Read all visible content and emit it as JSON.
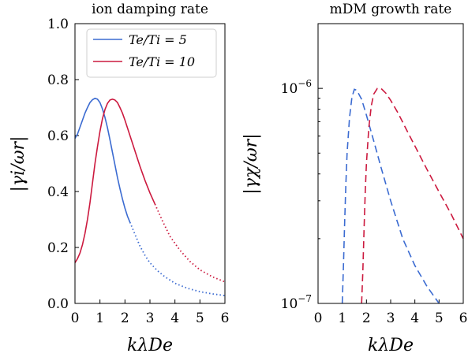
{
  "chart_data": [
    {
      "type": "line",
      "title": "ion damping rate",
      "xlabel": "kλDe",
      "ylabel": "|γi/ωr|",
      "xlim": [
        0,
        6
      ],
      "ylim": [
        0,
        1.0
      ],
      "xticks": [
        "0",
        "1",
        "2",
        "3",
        "4",
        "5",
        "6"
      ],
      "yticks": [
        "0.0",
        "0.2",
        "0.4",
        "0.6",
        "0.8",
        "1.0"
      ],
      "legend_position": "top-right",
      "series": [
        {
          "name": "Te/Ti = 5",
          "color": "#3b6bd1",
          "solid_until_x": 2.2,
          "after_style": "dotted",
          "points": [
            [
              0,
              0.59
            ],
            [
              0.1,
              0.605
            ],
            [
              0.2,
              0.63
            ],
            [
              0.3,
              0.655
            ],
            [
              0.4,
              0.68
            ],
            [
              0.5,
              0.7
            ],
            [
              0.6,
              0.718
            ],
            [
              0.7,
              0.728
            ],
            [
              0.8,
              0.733
            ],
            [
              0.9,
              0.73
            ],
            [
              1.0,
              0.718
            ],
            [
              1.1,
              0.695
            ],
            [
              1.2,
              0.665
            ],
            [
              1.3,
              0.628
            ],
            [
              1.4,
              0.585
            ],
            [
              1.5,
              0.54
            ],
            [
              1.6,
              0.495
            ],
            [
              1.7,
              0.45
            ],
            [
              1.8,
              0.41
            ],
            [
              1.9,
              0.373
            ],
            [
              2.0,
              0.34
            ],
            [
              2.1,
              0.312
            ],
            [
              2.2,
              0.29
            ],
            [
              2.4,
              0.247
            ],
            [
              2.6,
              0.205
            ],
            [
              2.8,
              0.172
            ],
            [
              3.0,
              0.145
            ],
            [
              3.3,
              0.117
            ],
            [
              3.6,
              0.095
            ],
            [
              4.0,
              0.072
            ],
            [
              4.5,
              0.054
            ],
            [
              5.0,
              0.042
            ],
            [
              5.5,
              0.034
            ],
            [
              6.0,
              0.028
            ]
          ]
        },
        {
          "name": "Te/Ti = 10",
          "color": "#cc1a3f",
          "solid_until_x": 3.2,
          "after_style": "dotted",
          "points": [
            [
              0,
              0.145
            ],
            [
              0.1,
              0.16
            ],
            [
              0.2,
              0.18
            ],
            [
              0.3,
              0.21
            ],
            [
              0.4,
              0.25
            ],
            [
              0.5,
              0.3
            ],
            [
              0.6,
              0.36
            ],
            [
              0.7,
              0.43
            ],
            [
              0.8,
              0.5
            ],
            [
              0.9,
              0.56
            ],
            [
              1.0,
              0.615
            ],
            [
              1.1,
              0.66
            ],
            [
              1.2,
              0.693
            ],
            [
              1.3,
              0.715
            ],
            [
              1.4,
              0.727
            ],
            [
              1.5,
              0.73
            ],
            [
              1.6,
              0.727
            ],
            [
              1.7,
              0.718
            ],
            [
              1.8,
              0.7
            ],
            [
              1.9,
              0.68
            ],
            [
              2.0,
              0.655
            ],
            [
              2.2,
              0.6
            ],
            [
              2.4,
              0.545
            ],
            [
              2.6,
              0.49
            ],
            [
              2.8,
              0.44
            ],
            [
              3.0,
              0.395
            ],
            [
              3.2,
              0.355
            ],
            [
              3.5,
              0.295
            ],
            [
              3.8,
              0.24
            ],
            [
              4.2,
              0.19
            ],
            [
              4.6,
              0.15
            ],
            [
              5.0,
              0.12
            ],
            [
              5.5,
              0.095
            ],
            [
              6.0,
              0.077
            ]
          ]
        }
      ]
    },
    {
      "type": "line",
      "title": "mDM growth rate",
      "xlabel": "kλDe",
      "ylabel": "|γχ/ωr|",
      "xlim": [
        0,
        6
      ],
      "ylim": [
        1e-07,
        2e-06
      ],
      "yscale": "log",
      "xticks": [
        "0",
        "1",
        "2",
        "3",
        "4",
        "5",
        "6"
      ],
      "yticks": [
        "10−6",
        "10−7"
      ],
      "line_style": "dashed",
      "series": [
        {
          "color": "#3b6bd1",
          "points": [
            [
              1.0,
              1e-07
            ],
            [
              1.05,
              1.5e-07
            ],
            [
              1.1,
              2.4e-07
            ],
            [
              1.15,
              3.6e-07
            ],
            [
              1.2,
              5e-07
            ],
            [
              1.3,
              7.3e-07
            ],
            [
              1.4,
              9.1e-07
            ],
            [
              1.5,
              9.9e-07
            ],
            [
              1.6,
              9.8e-07
            ],
            [
              1.8,
              8.9e-07
            ],
            [
              2.0,
              7.5e-07
            ],
            [
              2.3,
              5.7e-07
            ],
            [
              2.6,
              4.3e-07
            ],
            [
              3.0,
              3e-07
            ],
            [
              3.5,
              2e-07
            ],
            [
              4.0,
              1.5e-07
            ],
            [
              4.5,
              1.2e-07
            ],
            [
              5.0,
              1e-07
            ]
          ]
        },
        {
          "color": "#cc1a3f",
          "points": [
            [
              1.8,
              1e-07
            ],
            [
              1.85,
              1.4e-07
            ],
            [
              1.9,
              2.2e-07
            ],
            [
              1.95,
              3.3e-07
            ],
            [
              2.0,
              4.5e-07
            ],
            [
              2.1,
              6.6e-07
            ],
            [
              2.2,
              8.3e-07
            ],
            [
              2.3,
              9.4e-07
            ],
            [
              2.45,
              1e-06
            ],
            [
              2.6,
              1e-06
            ],
            [
              2.8,
              9.5e-07
            ],
            [
              3.0,
              8.8e-07
            ],
            [
              3.3,
              7.7e-07
            ],
            [
              3.6,
              6.6e-07
            ],
            [
              4.0,
              5.4e-07
            ],
            [
              4.5,
              4.2e-07
            ],
            [
              5.0,
              3.3e-07
            ],
            [
              5.5,
              2.6e-07
            ],
            [
              6.0,
              2e-07
            ]
          ]
        }
      ]
    }
  ],
  "labels": {
    "left_title": "ion damping rate",
    "right_title": "mDM growth rate",
    "legend_label_1": "Te/Ti = 5",
    "legend_label_2": "Te/Ti = 10",
    "left_ylabel": "|γi/ωr|",
    "right_ylabel": "|γχ/ωr|",
    "xlabel": "kλDe",
    "right_ytick_top": "10−6",
    "right_ytick_bottom": "10−7"
  }
}
